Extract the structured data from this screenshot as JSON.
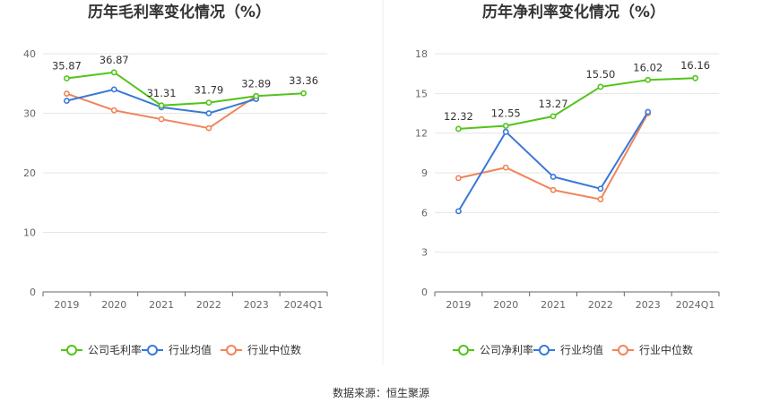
{
  "source_label": "数据来源：恒生聚源",
  "colors": {
    "company": "#52c41a",
    "industry_avg": "#3a78d8",
    "industry_median": "#f0845a",
    "grid": "#e6e6e6",
    "axis": "#666666"
  },
  "legend_icons": [
    "line-circle-icon",
    "line-circle-icon",
    "line-circle-icon"
  ],
  "chart_data": [
    {
      "type": "line",
      "title": "历年毛利率变化情况（%）",
      "xlabel": "",
      "ylabel": "",
      "categories": [
        "2019",
        "2020",
        "2021",
        "2022",
        "2023",
        "2024Q1"
      ],
      "ylim": [
        0,
        40
      ],
      "yticks": [
        "0",
        "10",
        "20",
        "30",
        "40"
      ],
      "grid": true,
      "legend_position": "bottom",
      "series": [
        {
          "name": "公司毛利率",
          "values": [
            35.87,
            36.87,
            31.31,
            31.79,
            32.89,
            33.36
          ],
          "labels": [
            "35.87",
            "36.87",
            "31.31",
            "31.79",
            "32.89",
            "33.36"
          ]
        },
        {
          "name": "行业均值",
          "values": [
            32.1,
            34.0,
            31.0,
            30.0,
            32.4,
            null
          ]
        },
        {
          "name": "行业中位数",
          "values": [
            33.3,
            30.5,
            29.0,
            27.5,
            32.9,
            null
          ]
        }
      ]
    },
    {
      "type": "line",
      "title": "历年净利率变化情况（%）",
      "xlabel": "",
      "ylabel": "",
      "categories": [
        "2019",
        "2020",
        "2021",
        "2022",
        "2023",
        "2024Q1"
      ],
      "ylim": [
        0,
        18
      ],
      "yticks": [
        "0",
        "3",
        "6",
        "9",
        "12",
        "15",
        "18"
      ],
      "grid": true,
      "legend_position": "bottom",
      "series": [
        {
          "name": "公司净利率",
          "values": [
            12.32,
            12.55,
            13.27,
            15.5,
            16.02,
            16.16
          ],
          "labels": [
            "12.32",
            "12.55",
            "13.27",
            "15.50",
            "16.02",
            "16.16"
          ]
        },
        {
          "name": "行业均值",
          "values": [
            6.1,
            12.1,
            8.7,
            7.8,
            13.6,
            null
          ]
        },
        {
          "name": "行业中位数",
          "values": [
            8.6,
            9.4,
            7.7,
            7.0,
            13.5,
            null
          ]
        }
      ]
    }
  ]
}
